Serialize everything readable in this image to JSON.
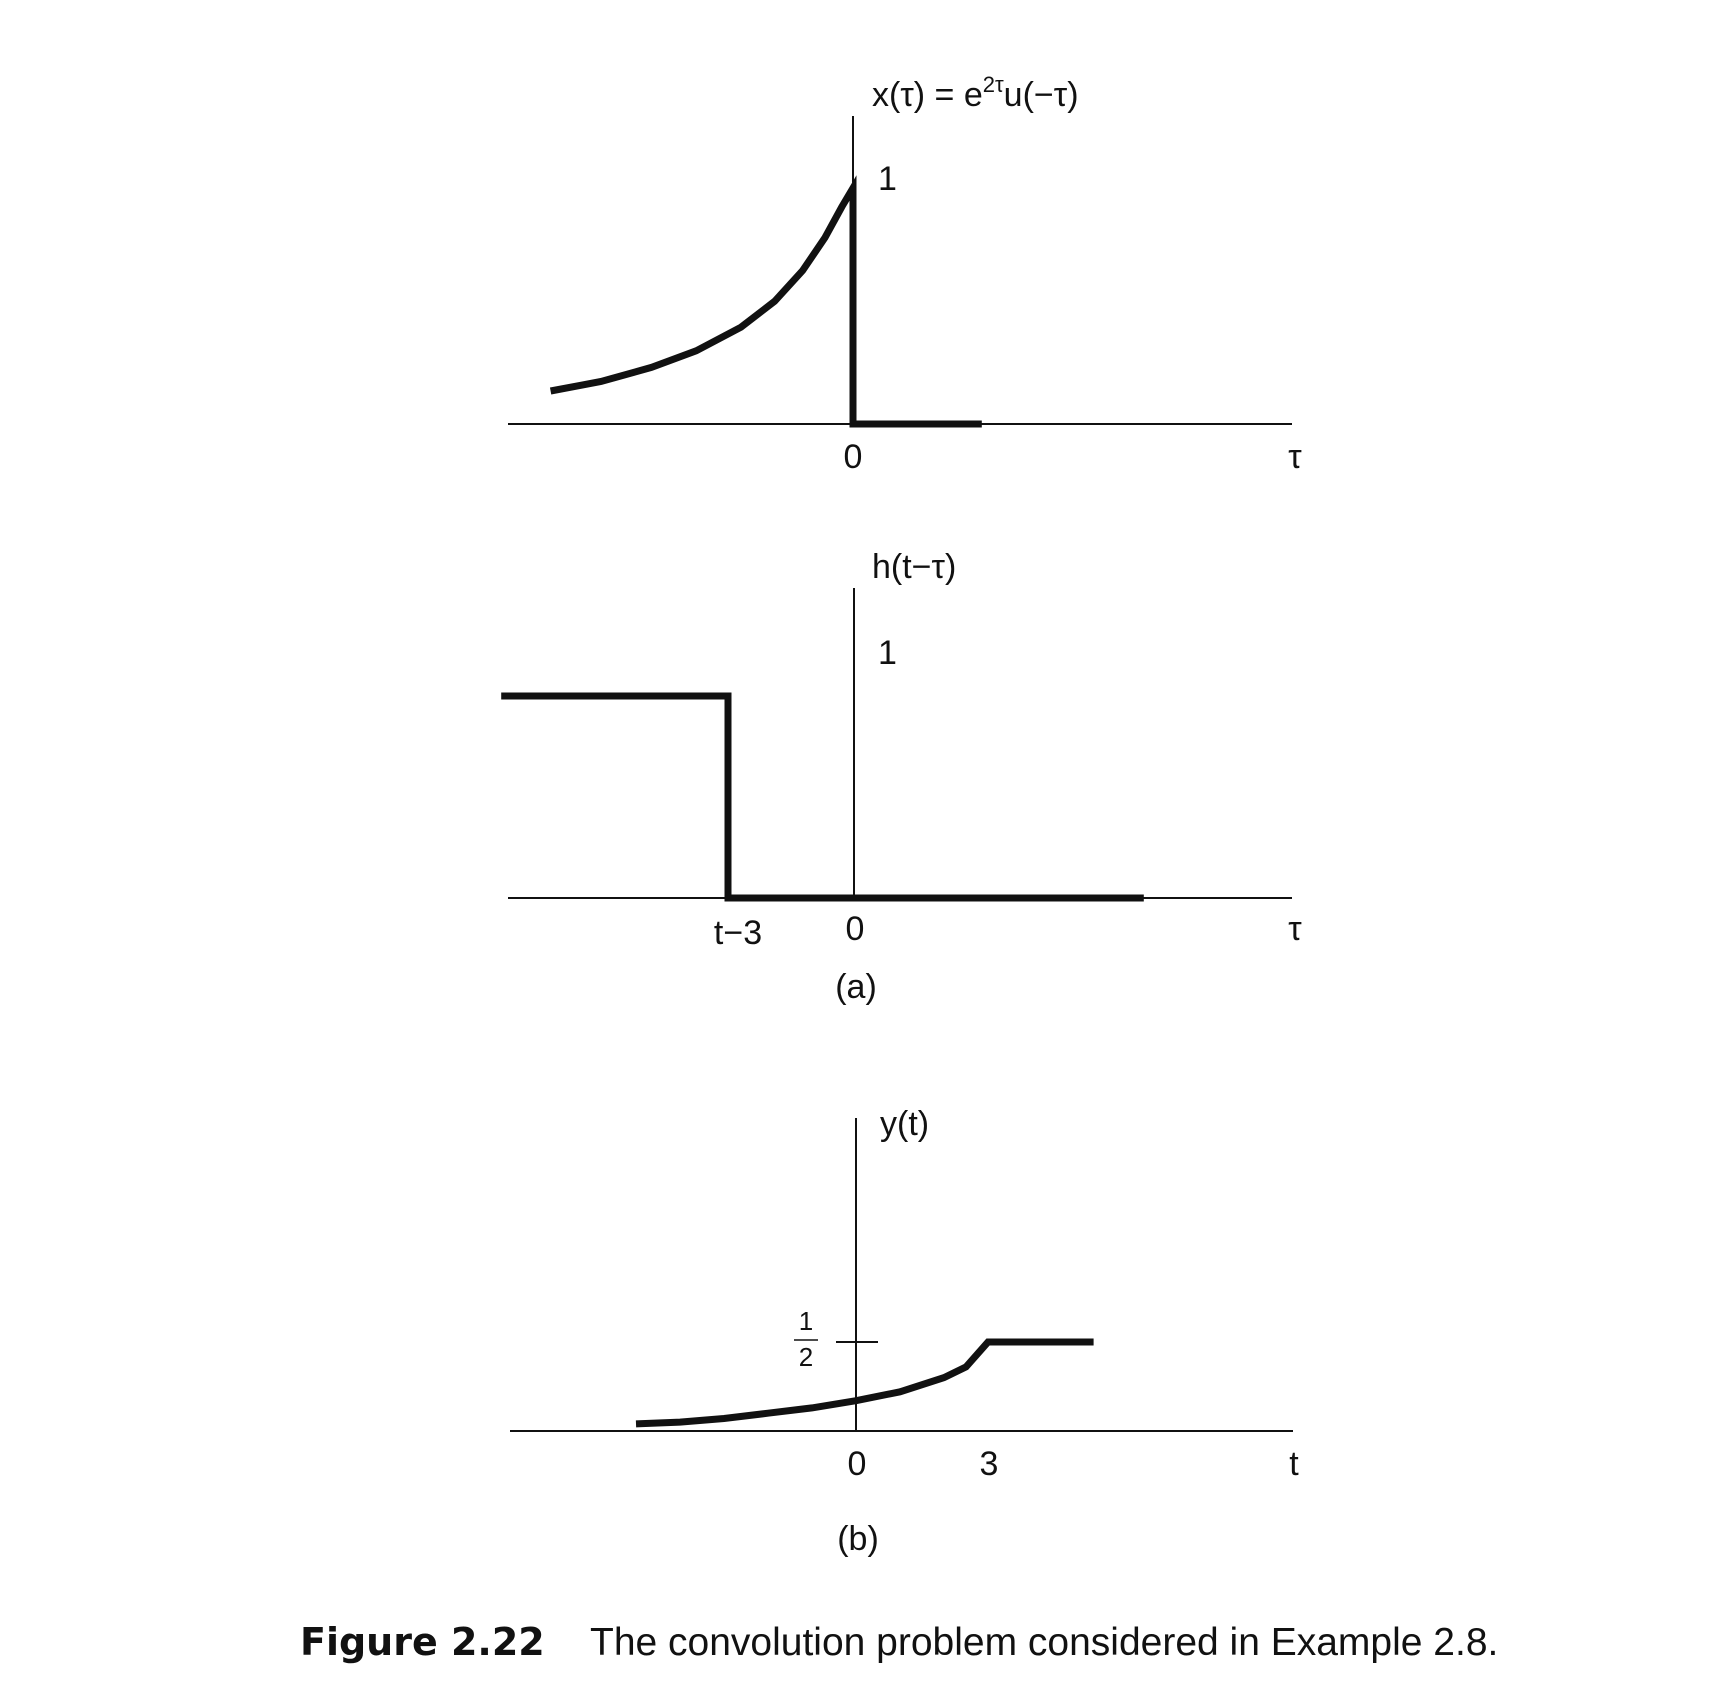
{
  "chart_data": [
    {
      "type": "line",
      "id": "panel-x",
      "title": "x(τ) = e2τu(−τ)",
      "title_parts": {
        "base": "x(τ) = e",
        "sup": "2τ",
        "rest": "u(−τ)"
      },
      "xlabel": "τ",
      "xlim": [
        -2.8,
        3.6
      ],
      "ylim": [
        0,
        1
      ],
      "x_ticks": [
        {
          "value": 0,
          "label": "0"
        }
      ],
      "y_ticks": [
        {
          "value": 1,
          "label": "1"
        }
      ],
      "series": [
        {
          "values": [
            {
              "x": -2.7,
              "y": 0.14
            },
            {
              "x": -2.25,
              "y": 0.18
            },
            {
              "x": -1.8,
              "y": 0.24
            },
            {
              "x": -1.4,
              "y": 0.31
            },
            {
              "x": -1.0,
              "y": 0.41
            },
            {
              "x": -0.7,
              "y": 0.52
            },
            {
              "x": -0.45,
              "y": 0.65
            },
            {
              "x": -0.25,
              "y": 0.79
            },
            {
              "x": -0.1,
              "y": 0.92
            },
            {
              "x": 0,
              "y": 1.0
            },
            {
              "x": 0,
              "y": 0
            },
            {
              "x": 1.15,
              "y": 0
            }
          ]
        }
      ],
      "grid": false
    },
    {
      "type": "line",
      "id": "panel-h",
      "title": "h(t−τ)",
      "xlabel": "τ",
      "xlim": [
        -2.8,
        3.6
      ],
      "ylim": [
        0,
        1
      ],
      "x_ticks": [
        {
          "value": -1,
          "label": "t−3"
        },
        {
          "value": 0,
          "label": "0"
        }
      ],
      "y_ticks": [
        {
          "value": 1,
          "label": "1"
        }
      ],
      "series": [
        {
          "values": [
            {
              "x": -2.8,
              "y": 1.0
            },
            {
              "x": -1.0,
              "y": 1.0
            },
            {
              "x": -1.0,
              "y": 0
            },
            {
              "x": 2.3,
              "y": 0
            }
          ]
        }
      ],
      "grid": false,
      "annotation": "(a)"
    },
    {
      "type": "line",
      "id": "panel-y",
      "title": "y(t)",
      "xlabel": "t",
      "xlim": [
        -5.3,
        6.6
      ],
      "ylim": [
        0,
        1.5
      ],
      "x_ticks": [
        {
          "value": 0,
          "label": "0"
        },
        {
          "value": 3,
          "label": "3"
        }
      ],
      "y_ticks": [
        {
          "value": 0.5,
          "label": "1/2",
          "numerator": "1",
          "denominator": "2"
        }
      ],
      "series": [
        {
          "values": [
            {
              "x": -5.0,
              "y": 0.04
            },
            {
              "x": -4.0,
              "y": 0.05
            },
            {
              "x": -3.0,
              "y": 0.07
            },
            {
              "x": -2.0,
              "y": 0.1
            },
            {
              "x": -1.0,
              "y": 0.13
            },
            {
              "x": 0,
              "y": 0.17
            },
            {
              "x": 1.0,
              "y": 0.22
            },
            {
              "x": 2.0,
              "y": 0.3
            },
            {
              "x": 2.5,
              "y": 0.36
            },
            {
              "x": 3.0,
              "y": 0.5
            },
            {
              "x": 5.4,
              "y": 0.5
            }
          ]
        }
      ],
      "grid": false,
      "annotation": "(b)"
    }
  ],
  "caption": {
    "number": "Figure 2.22",
    "text": "The convolution problem considered in Example 2.8."
  }
}
